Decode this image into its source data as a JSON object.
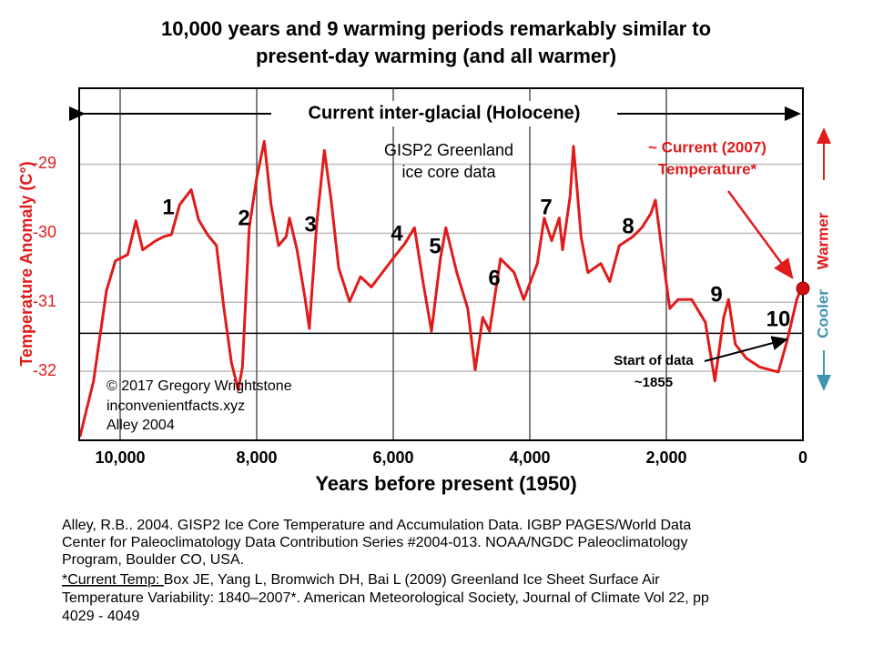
{
  "chart_data": {
    "type": "line",
    "title": [
      "10,000 years and 9 warming periods remarkably similar to",
      "present-day warming (and all warmer)"
    ],
    "xlabel": "Years before present (1950)",
    "ylabel": "Temperature Anomaly (C°)",
    "x": [
      10590,
      10390,
      10200,
      10070,
      9890,
      9770,
      9670,
      9480,
      9360,
      9250,
      9130,
      8960,
      8850,
      8720,
      8590,
      8480,
      8370,
      8270,
      8210,
      8110,
      8000,
      7890,
      7790,
      7680,
      7570,
      7520,
      7410,
      7290,
      7230,
      7120,
      7010,
      6910,
      6800,
      6640,
      6480,
      6320,
      6160,
      5960,
      5830,
      5690,
      5560,
      5440,
      5310,
      5230,
      5070,
      4910,
      4800,
      4690,
      4590,
      4430,
      4230,
      4090,
      3890,
      3790,
      3680,
      3570,
      3520,
      3410,
      3360,
      3250,
      3150,
      2960,
      2830,
      2690,
      2490,
      2360,
      2230,
      2160,
      2050,
      1950,
      1830,
      1630,
      1430,
      1290,
      1160,
      1090,
      990,
      830,
      630,
      360,
      230,
      90,
      30
    ],
    "values": [
      -32.95,
      -32.14,
      -30.83,
      -30.4,
      -30.31,
      -29.82,
      -30.24,
      -30.11,
      -30.05,
      -30.02,
      -29.59,
      -29.37,
      -29.81,
      -30.02,
      -30.18,
      -31.09,
      -31.88,
      -32.27,
      -31.94,
      -29.92,
      -29.2,
      -28.67,
      -29.59,
      -30.18,
      -30.05,
      -29.78,
      -30.24,
      -30.96,
      -31.38,
      -29.85,
      -28.8,
      -29.52,
      -30.5,
      -30.99,
      -30.63,
      -30.78,
      -30.57,
      -30.31,
      -30.15,
      -29.92,
      -30.73,
      -31.42,
      -30.37,
      -29.92,
      -30.57,
      -31.09,
      -31.98,
      -31.22,
      -31.42,
      -30.37,
      -30.57,
      -30.96,
      -30.44,
      -29.78,
      -30.11,
      -29.78,
      -30.24,
      -29.46,
      -28.74,
      -30.05,
      -30.57,
      -30.44,
      -30.7,
      -30.18,
      -30.05,
      -29.92,
      -29.72,
      -29.52,
      -30.37,
      -31.09,
      -30.96,
      -30.96,
      -31.29,
      -32.14,
      -31.22,
      -30.96,
      -31.61,
      -31.81,
      -31.94,
      -32.01,
      -31.55,
      -30.96,
      -30.8
    ],
    "color": "#e01b1b",
    "baseline": -31.45,
    "below_color": "#3f93b3",
    "current": {
      "x": 0,
      "value": -30.8
    },
    "xlim": [
      10600,
      0
    ],
    "ylim": [
      -33,
      -27.9
    ],
    "xticks": [
      {
        "value": 10000,
        "label": "10,000"
      },
      {
        "value": 8000,
        "label": "8,000"
      },
      {
        "value": 6000,
        "label": "6,000"
      },
      {
        "value": 4000,
        "label": "4,000"
      },
      {
        "value": 2000,
        "label": "2,000"
      },
      0
    ],
    "yticks": [
      -29,
      -30,
      -31,
      -32
    ],
    "grid": true,
    "annotations": {
      "holocene": "Current inter-glacial (Holocene)",
      "dataset": [
        "GISP2 Greenland",
        "ice core data"
      ],
      "current_label": [
        "~ Current (2007)",
        "Temperature*"
      ],
      "start_label": [
        "Start of data",
        "~1855"
      ],
      "credit": [
        "© 2017 Gregory Wrightstone",
        "inconvenientfacts.xyz",
        "Alley 2004"
      ],
      "periods": [
        "1",
        "2",
        "3",
        "4",
        "5",
        "6",
        "7",
        "8",
        "9",
        "10"
      ],
      "cooler": "Cooler",
      "warmer": "Warmer"
    }
  },
  "references": [
    "Alley, R.B.. 2004. GISP2 Ice Core Temperature and Accumulation Data. IGBP PAGES/World Data",
    "Center for Paleoclimatology Data Contribution Series #2004-013. NOAA/NGDC Paleoclimatology",
    "Program, Boulder CO, USA.",
    "*Current Temp: ",
    "Box JE, Yang L, Bromwich DH, Bai L (2009) Greenland Ice Sheet Surface Air",
    "Temperature Variability: 1840–2007*. American Meteorological Society, Journal of Climate Vol 22, pp",
    "4029 - 4049"
  ]
}
